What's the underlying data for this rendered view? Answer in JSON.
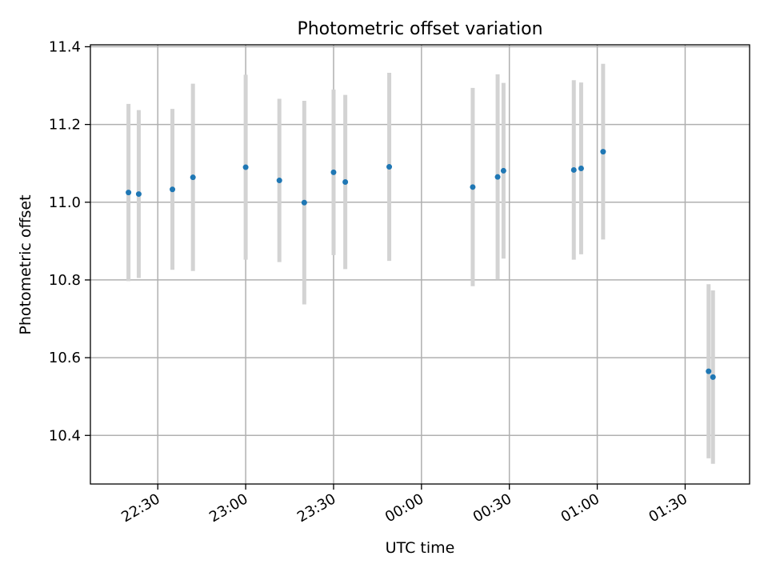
{
  "chart_data": {
    "type": "scatter",
    "title": "Photometric offset variation",
    "xlabel": "UTC time",
    "ylabel": "Photometric offset",
    "xlim": [
      "22:07",
      "01:52"
    ],
    "ylim": [
      10.275,
      11.405
    ],
    "xticks": [
      "22:30",
      "23:00",
      "23:30",
      "00:00",
      "00:30",
      "01:00",
      "01:30"
    ],
    "yticks": [
      "10.4",
      "10.6",
      "10.8",
      "11.0",
      "11.2",
      "11.4"
    ],
    "grid": true,
    "colors": {
      "points": "#1f77b4",
      "errorbars": "#d3d3d3",
      "grid": "#b0b0b0"
    },
    "points": [
      {
        "x": "22:20",
        "y": 11.025,
        "y_low": 10.797,
        "y_high": 11.253
      },
      {
        "x": "22:23.5",
        "y": 11.021,
        "y_low": 10.805,
        "y_high": 11.237
      },
      {
        "x": "22:35",
        "y": 11.033,
        "y_low": 10.826,
        "y_high": 11.24
      },
      {
        "x": "22:42",
        "y": 11.064,
        "y_low": 10.823,
        "y_high": 11.305
      },
      {
        "x": "23:00",
        "y": 11.09,
        "y_low": 10.852,
        "y_high": 11.328
      },
      {
        "x": "23:11.5",
        "y": 11.056,
        "y_low": 10.846,
        "y_high": 11.266
      },
      {
        "x": "23:20",
        "y": 10.999,
        "y_low": 10.737,
        "y_high": 11.261
      },
      {
        "x": "23:30",
        "y": 11.077,
        "y_low": 10.864,
        "y_high": 11.29
      },
      {
        "x": "23:34",
        "y": 11.052,
        "y_low": 10.828,
        "y_high": 11.276
      },
      {
        "x": "23:49",
        "y": 11.091,
        "y_low": 10.849,
        "y_high": 11.333
      },
      {
        "x": "00:17.5",
        "y": 11.039,
        "y_low": 10.784,
        "y_high": 11.294
      },
      {
        "x": "00:26",
        "y": 11.065,
        "y_low": 10.801,
        "y_high": 11.329
      },
      {
        "x": "00:28",
        "y": 11.081,
        "y_low": 10.855,
        "y_high": 11.307
      },
      {
        "x": "00:52",
        "y": 11.083,
        "y_low": 10.852,
        "y_high": 11.314
      },
      {
        "x": "00:54.5",
        "y": 11.087,
        "y_low": 10.866,
        "y_high": 11.308
      },
      {
        "x": "01:02",
        "y": 11.13,
        "y_low": 10.904,
        "y_high": 11.356
      },
      {
        "x": "01:38",
        "y": 10.565,
        "y_low": 10.341,
        "y_high": 10.789
      },
      {
        "x": "01:39.5",
        "y": 10.55,
        "y_low": 10.327,
        "y_high": 10.773
      }
    ]
  }
}
